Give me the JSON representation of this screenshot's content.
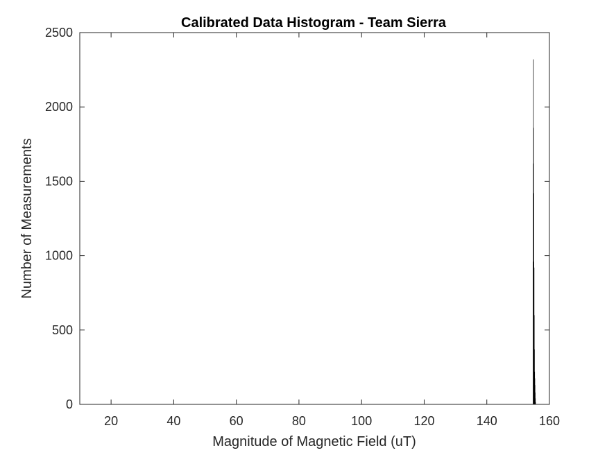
{
  "chart_data": {
    "type": "bar",
    "title": "Calibrated Data Histogram - Team Sierra",
    "xlabel": "Magnitude of Magnetic Field (uT)",
    "ylabel": "Number of Measurements",
    "xlim": [
      10,
      160
    ],
    "ylim": [
      0,
      2500
    ],
    "xticks": [
      20,
      40,
      60,
      80,
      100,
      120,
      140,
      160
    ],
    "yticks": [
      0,
      500,
      1000,
      1500,
      2000,
      2500
    ],
    "grid": false,
    "bar_color": "#000000",
    "bins": [
      {
        "x": 154.8,
        "count": 960
      },
      {
        "x": 154.86,
        "count": 1620
      },
      {
        "x": 154.92,
        "count": 2320
      },
      {
        "x": 154.98,
        "count": 1860
      },
      {
        "x": 155.04,
        "count": 1420
      },
      {
        "x": 155.1,
        "count": 920
      },
      {
        "x": 155.16,
        "count": 600
      },
      {
        "x": 155.22,
        "count": 370
      },
      {
        "x": 155.28,
        "count": 220
      },
      {
        "x": 155.34,
        "count": 175
      },
      {
        "x": 155.4,
        "count": 130
      },
      {
        "x": 155.46,
        "count": 80
      },
      {
        "x": 155.52,
        "count": 40
      },
      {
        "x": 155.58,
        "count": 15
      }
    ]
  }
}
